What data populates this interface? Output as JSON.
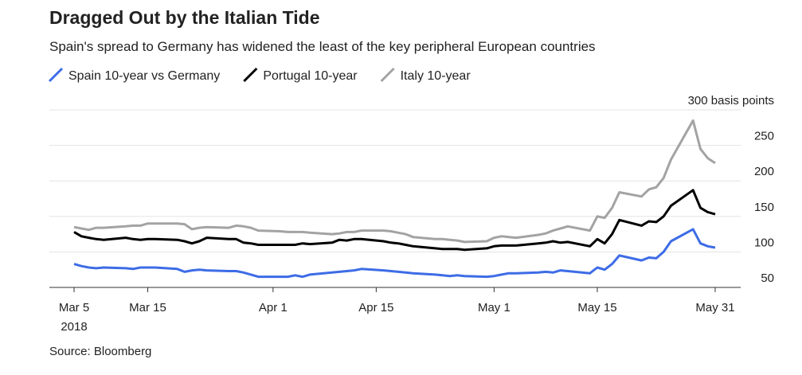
{
  "chart_data": {
    "type": "line",
    "title": "Dragged Out by the Italian Tide",
    "subtitle": "Spain's spread to Germany has widened the least of the key peripheral European countries",
    "source": "Source: Bloomberg",
    "x": [
      "2018-03-05",
      "2018-03-06",
      "2018-03-07",
      "2018-03-08",
      "2018-03-09",
      "2018-03-12",
      "2018-03-13",
      "2018-03-14",
      "2018-03-15",
      "2018-03-16",
      "2018-03-19",
      "2018-03-20",
      "2018-03-21",
      "2018-03-22",
      "2018-03-23",
      "2018-03-26",
      "2018-03-27",
      "2018-03-28",
      "2018-03-29",
      "2018-03-30",
      "2018-04-02",
      "2018-04-03",
      "2018-04-04",
      "2018-04-05",
      "2018-04-06",
      "2018-04-09",
      "2018-04-10",
      "2018-04-11",
      "2018-04-12",
      "2018-04-13",
      "2018-04-16",
      "2018-04-17",
      "2018-04-18",
      "2018-04-19",
      "2018-04-20",
      "2018-04-23",
      "2018-04-24",
      "2018-04-25",
      "2018-04-26",
      "2018-04-27",
      "2018-04-30",
      "2018-05-01",
      "2018-05-02",
      "2018-05-03",
      "2018-05-04",
      "2018-05-07",
      "2018-05-08",
      "2018-05-09",
      "2018-05-10",
      "2018-05-11",
      "2018-05-14",
      "2018-05-15",
      "2018-05-16",
      "2018-05-17",
      "2018-05-18",
      "2018-05-21",
      "2018-05-22",
      "2018-05-23",
      "2018-05-24",
      "2018-05-25",
      "2018-05-28",
      "2018-05-29",
      "2018-05-30",
      "2018-05-31"
    ],
    "series": [
      {
        "name": "Spain 10-year vs Germany",
        "color": "#3d6ce6",
        "values": [
          83,
          80,
          78,
          77,
          78,
          77,
          76,
          78,
          78,
          78,
          76,
          72,
          74,
          75,
          74,
          73,
          73,
          71,
          68,
          65,
          65,
          65,
          67,
          65,
          68,
          71,
          72,
          73,
          74,
          76,
          74,
          73,
          72,
          71,
          70,
          68,
          67,
          66,
          67,
          66,
          65,
          66,
          68,
          70,
          70,
          71,
          72,
          71,
          74,
          73,
          70,
          78,
          75,
          83,
          95,
          88,
          92,
          91,
          100,
          115,
          132,
          112,
          108,
          106
        ]
      },
      {
        "name": "Portugal 10-year",
        "color": "#000000",
        "values": [
          128,
          122,
          120,
          118,
          117,
          120,
          118,
          117,
          118,
          118,
          117,
          115,
          112,
          115,
          120,
          118,
          118,
          113,
          112,
          110,
          110,
          110,
          110,
          112,
          111,
          113,
          117,
          116,
          118,
          118,
          115,
          113,
          112,
          110,
          108,
          105,
          104,
          104,
          104,
          103,
          105,
          108,
          109,
          109,
          109,
          112,
          113,
          115,
          113,
          114,
          108,
          118,
          112,
          125,
          145,
          137,
          143,
          142,
          150,
          165,
          187,
          162,
          156,
          153
        ]
      },
      {
        "name": "Italy 10-year",
        "color": "#a3a3a3",
        "values": [
          135,
          133,
          131,
          134,
          134,
          136,
          137,
          137,
          140,
          140,
          140,
          139,
          132,
          134,
          135,
          134,
          137,
          136,
          134,
          130,
          129,
          128,
          128,
          128,
          127,
          125,
          126,
          128,
          128,
          130,
          130,
          129,
          127,
          125,
          121,
          118,
          118,
          117,
          116,
          114,
          115,
          120,
          122,
          121,
          120,
          124,
          126,
          130,
          133,
          136,
          130,
          150,
          148,
          162,
          184,
          178,
          188,
          191,
          204,
          230,
          285,
          245,
          232,
          225
        ]
      }
    ],
    "xlim": [
      "2018-03-05",
      "2018-05-31"
    ],
    "xticks": [
      {
        "value": "2018-03-05",
        "label": "Mar 5"
      },
      {
        "value": "2018-03-15",
        "label": "Mar 15"
      },
      {
        "value": "2018-04-01",
        "label": "Apr 1"
      },
      {
        "value": "2018-04-15",
        "label": "Apr 15"
      },
      {
        "value": "2018-05-01",
        "label": "May 1"
      },
      {
        "value": "2018-05-15",
        "label": "May 15"
      },
      {
        "value": "2018-05-31",
        "label": "May 31"
      }
    ],
    "xaxis_year": "2018",
    "ylim": [
      50,
      300
    ],
    "yticks": [
      50,
      100,
      150,
      200,
      250,
      {
        "value": 300,
        "label": "300 basis points"
      }
    ],
    "grid": true,
    "legend": "top"
  }
}
